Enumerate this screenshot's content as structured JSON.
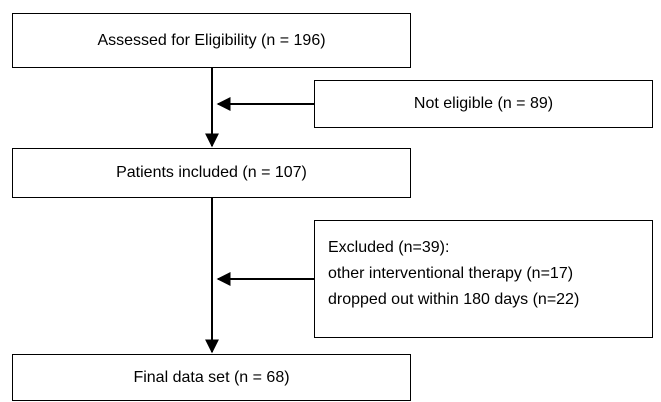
{
  "flow": {
    "assessed": "Assessed for Eligibility (n = 196)",
    "not_eligible": "Not eligible (n = 89)",
    "included": "Patients included (n = 107)",
    "excluded": {
      "title": "Excluded (n=39):",
      "reasons": [
        "other interventional therapy (n=17)",
        "dropped out within 180 days (n=22)"
      ]
    },
    "final": "Final data set (n = 68)"
  }
}
